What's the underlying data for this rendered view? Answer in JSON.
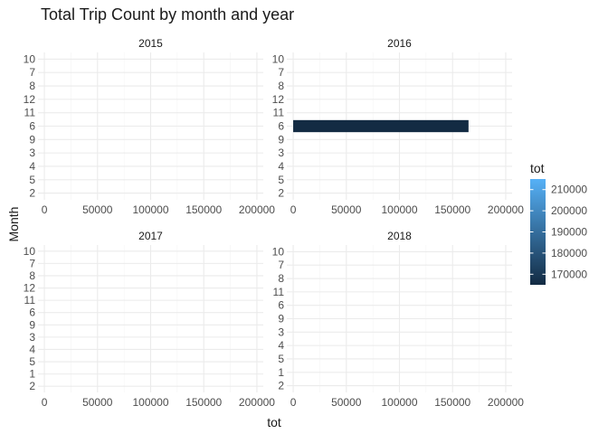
{
  "chart_data": {
    "type": "bar",
    "orientation": "horizontal",
    "title": "Total Trip Count by month and year",
    "xlabel": "tot",
    "ylabel": "Month",
    "xlim": [
      -6000,
      206000
    ],
    "x_ticks": [
      0,
      50000,
      100000,
      150000,
      200000
    ],
    "x_tick_labels": [
      "0",
      "50000",
      "100000",
      "150000",
      "200000"
    ],
    "categories": [
      "10",
      "7",
      "8",
      "12",
      "11",
      "6",
      "9",
      "3",
      "4",
      "5",
      "1",
      "2"
    ],
    "panels": [
      {
        "label": "2015",
        "bars": []
      },
      {
        "label": "2016",
        "bars": [
          {
            "category": "6",
            "value": 165000
          }
        ]
      },
      {
        "label": "2017",
        "bars": []
      },
      {
        "label": "2018",
        "bars": []
      }
    ],
    "panel_categories": {
      "2015": [
        "10",
        "7",
        "8",
        "12",
        "11",
        "6",
        "9",
        "3",
        "4",
        "5",
        "2"
      ],
      "2016": [
        "10",
        "7",
        "8",
        "12",
        "11",
        "6",
        "9",
        "3",
        "4",
        "5",
        "2"
      ],
      "2017": [
        "10",
        "7",
        "8",
        "12",
        "11",
        "6",
        "9",
        "3",
        "4",
        "5",
        "1",
        "2"
      ],
      "2018": [
        "10",
        "7",
        "8",
        "11",
        "6",
        "9",
        "3",
        "4",
        "5",
        "1",
        "2"
      ]
    },
    "legend": {
      "title": "tot",
      "placement": "right",
      "range": [
        165000,
        215000
      ],
      "ticks": [
        170000,
        180000,
        190000,
        200000,
        210000
      ],
      "tick_labels": [
        "170000",
        "180000",
        "190000",
        "200000",
        "210000"
      ],
      "color_low": "#132B43",
      "color_high": "#56B1F7"
    },
    "grid": true
  }
}
